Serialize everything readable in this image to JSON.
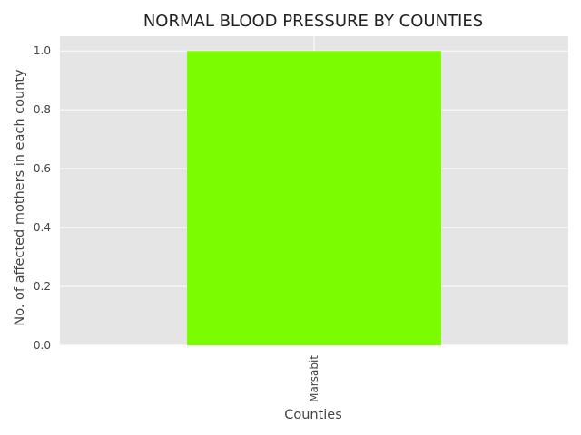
{
  "chart_data": {
    "type": "bar",
    "title": "NORMAL BLOOD PRESSURE BY COUNTIES",
    "xlabel": "Counties",
    "ylabel": "No. of affected mothers in each county",
    "categories": [
      "Marsabit"
    ],
    "values": [
      1.0
    ],
    "ylim": [
      0.0,
      1.05
    ],
    "yticks": [
      "0.0",
      "0.2",
      "0.4",
      "0.6",
      "0.8",
      "1.0"
    ],
    "grid": true,
    "legend": "none",
    "colors": {
      "bar": "#7cfc00",
      "plot_background": "#e5e5e5",
      "grid": "#ffffff"
    }
  }
}
